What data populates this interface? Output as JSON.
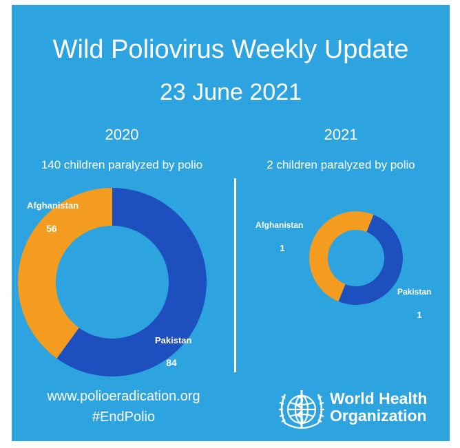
{
  "title": "Wild Poliovirus Weekly Update",
  "date": "23 June 2021",
  "colors": {
    "background": "#2da3e0",
    "afghanistan": "#f39c1f",
    "pakistan": "#1d4fbf",
    "text": "#ffffff"
  },
  "chart_data": [
    {
      "type": "pie",
      "title": "2020",
      "subtitle": "140 children paralyzed by polio",
      "style": "donut",
      "categories": [
        "Afghanistan",
        "Pakistan"
      ],
      "values": [
        56,
        84
      ],
      "value_labels": [
        "56",
        "84"
      ]
    },
    {
      "type": "pie",
      "title": "2021",
      "subtitle": "2 children paralyzed by polio",
      "style": "donut",
      "categories": [
        "Afghanistan",
        "Pakistan"
      ],
      "values": [
        1,
        1
      ],
      "value_labels": [
        "1",
        "1"
      ]
    }
  ],
  "footer": {
    "url": "www.polioeradication.org",
    "hashtag": "#EndPolio",
    "logo_icon": "who-emblem-icon",
    "org_name": "World Health\nOrganization"
  }
}
